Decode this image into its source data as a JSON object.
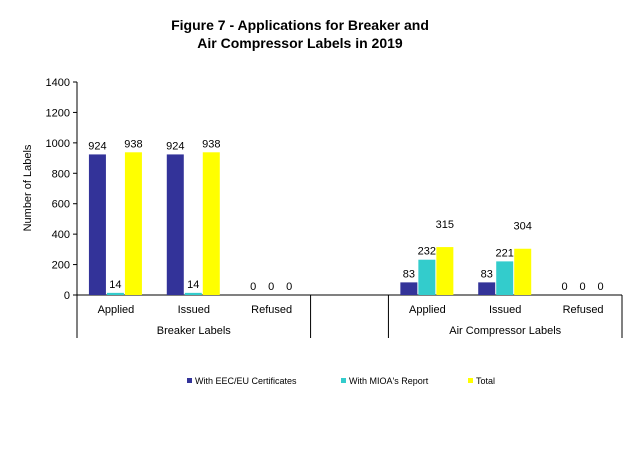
{
  "chart_data": {
    "type": "bar",
    "title_lines": [
      "Figure 7 - Applications for Breaker and",
      "Air Compressor Labels in 2019"
    ],
    "ylabel": "Number of Labels",
    "xlabel": "",
    "ylim": [
      0,
      1400
    ],
    "yticks": [
      0,
      200,
      400,
      600,
      800,
      1000,
      1200,
      1400
    ],
    "grid": false,
    "legend_position": "bottom",
    "groups": [
      {
        "label": "Breaker Labels",
        "categories": [
          "Applied",
          "Issued",
          "Refused"
        ]
      },
      {
        "label": "",
        "categories": [
          ""
        ]
      },
      {
        "label": "Air Compressor Labels",
        "categories": [
          "Applied",
          "Issued",
          "Refused"
        ]
      }
    ],
    "series": [
      {
        "name": "With EEC/EU Certificates",
        "color": "#333399",
        "values": [
          924,
          924,
          0,
          null,
          83,
          83,
          0
        ]
      },
      {
        "name": "With MIOA's Report",
        "color": "#33CCCC",
        "values": [
          14,
          14,
          0,
          null,
          232,
          221,
          0
        ]
      },
      {
        "name": "Total",
        "color": "#FFFF00",
        "values": [
          938,
          938,
          0,
          null,
          315,
          304,
          0
        ]
      }
    ]
  }
}
